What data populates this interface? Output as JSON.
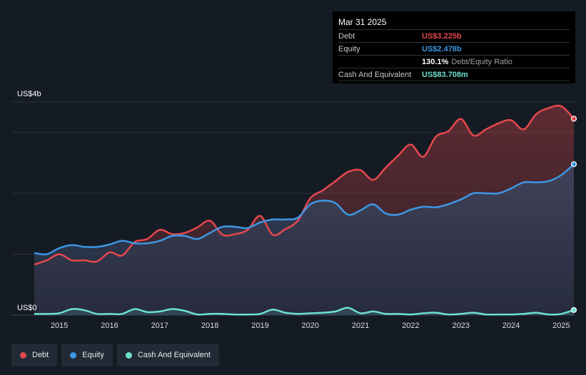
{
  "tooltip": {
    "date": "Mar 31 2025",
    "rows": [
      {
        "label": "Debt",
        "value": "US$3.225b",
        "color": "#e5484d"
      },
      {
        "label": "Equity",
        "value": "US$2.478b",
        "color": "#3d97e4"
      },
      {
        "label": "",
        "value": "130.1%",
        "suffix": "Debt/Equity Ratio",
        "color": "#ffffff"
      },
      {
        "label": "Cash And Equivalent",
        "value": "US$83.708m",
        "color": "#6ce0cf"
      }
    ]
  },
  "legend": [
    {
      "label": "Debt",
      "color": "#e5484d"
    },
    {
      "label": "Equity",
      "color": "#3d97e4"
    },
    {
      "label": "Cash And Equivalent",
      "color": "#6ce0cf"
    }
  ],
  "chart_data": {
    "type": "area",
    "ylabel_top": "US$4b",
    "ylabel_bottom": "US$0",
    "ylim": [
      0,
      3.5
    ],
    "xlim": [
      2014.5,
      2025.25
    ],
    "x_ticks": [
      "2015",
      "2016",
      "2017",
      "2018",
      "2019",
      "2020",
      "2021",
      "2022",
      "2023",
      "2024",
      "2025"
    ],
    "x_tick_values": [
      2015,
      2016,
      2017,
      2018,
      2019,
      2020,
      2021,
      2022,
      2023,
      2024,
      2025
    ],
    "grid": true,
    "series": [
      {
        "name": "Debt",
        "color": "#e5484d",
        "points": [
          [
            2014.5,
            0.83
          ],
          [
            2014.75,
            0.9
          ],
          [
            2015,
            1.0
          ],
          [
            2015.25,
            0.9
          ],
          [
            2015.5,
            0.9
          ],
          [
            2015.75,
            0.88
          ],
          [
            2016,
            1.03
          ],
          [
            2016.25,
            0.98
          ],
          [
            2016.5,
            1.2
          ],
          [
            2016.75,
            1.25
          ],
          [
            2017,
            1.4
          ],
          [
            2017.25,
            1.33
          ],
          [
            2017.5,
            1.35
          ],
          [
            2017.75,
            1.44
          ],
          [
            2018,
            1.55
          ],
          [
            2018.25,
            1.32
          ],
          [
            2018.5,
            1.33
          ],
          [
            2018.75,
            1.4
          ],
          [
            2019,
            1.63
          ],
          [
            2019.25,
            1.32
          ],
          [
            2019.5,
            1.41
          ],
          [
            2019.75,
            1.55
          ],
          [
            2020,
            1.92
          ],
          [
            2020.25,
            2.05
          ],
          [
            2020.5,
            2.2
          ],
          [
            2020.75,
            2.35
          ],
          [
            2021,
            2.38
          ],
          [
            2021.25,
            2.22
          ],
          [
            2021.5,
            2.42
          ],
          [
            2021.75,
            2.62
          ],
          [
            2022,
            2.8
          ],
          [
            2022.25,
            2.6
          ],
          [
            2022.5,
            2.93
          ],
          [
            2022.75,
            3.02
          ],
          [
            2023,
            3.22
          ],
          [
            2023.25,
            2.95
          ],
          [
            2023.5,
            3.05
          ],
          [
            2023.75,
            3.15
          ],
          [
            2024,
            3.2
          ],
          [
            2024.25,
            3.05
          ],
          [
            2024.5,
            3.3
          ],
          [
            2024.75,
            3.4
          ],
          [
            2025,
            3.43
          ],
          [
            2025.25,
            3.225
          ]
        ]
      },
      {
        "name": "Equity",
        "color": "#3d97e4",
        "points": [
          [
            2014.5,
            1.02
          ],
          [
            2014.75,
            1.0
          ],
          [
            2015,
            1.1
          ],
          [
            2015.25,
            1.15
          ],
          [
            2015.5,
            1.12
          ],
          [
            2015.75,
            1.12
          ],
          [
            2016,
            1.16
          ],
          [
            2016.25,
            1.22
          ],
          [
            2016.5,
            1.18
          ],
          [
            2016.75,
            1.18
          ],
          [
            2017,
            1.22
          ],
          [
            2017.25,
            1.3
          ],
          [
            2017.5,
            1.3
          ],
          [
            2017.75,
            1.25
          ],
          [
            2018,
            1.35
          ],
          [
            2018.25,
            1.45
          ],
          [
            2018.5,
            1.45
          ],
          [
            2018.75,
            1.43
          ],
          [
            2019,
            1.52
          ],
          [
            2019.25,
            1.57
          ],
          [
            2019.5,
            1.57
          ],
          [
            2019.75,
            1.6
          ],
          [
            2020,
            1.82
          ],
          [
            2020.25,
            1.88
          ],
          [
            2020.5,
            1.84
          ],
          [
            2020.75,
            1.65
          ],
          [
            2021,
            1.72
          ],
          [
            2021.25,
            1.82
          ],
          [
            2021.5,
            1.67
          ],
          [
            2021.75,
            1.65
          ],
          [
            2022,
            1.73
          ],
          [
            2022.25,
            1.78
          ],
          [
            2022.5,
            1.77
          ],
          [
            2022.75,
            1.82
          ],
          [
            2023,
            1.9
          ],
          [
            2023.25,
            2.0
          ],
          [
            2023.5,
            2.0
          ],
          [
            2023.75,
            2.0
          ],
          [
            2024,
            2.08
          ],
          [
            2024.25,
            2.18
          ],
          [
            2024.5,
            2.18
          ],
          [
            2024.75,
            2.2
          ],
          [
            2025,
            2.3
          ],
          [
            2025.25,
            2.478
          ]
        ]
      },
      {
        "name": "Cash And Equivalent",
        "color": "#6ce0cf",
        "points": [
          [
            2014.5,
            0.02
          ],
          [
            2014.75,
            0.02
          ],
          [
            2015,
            0.03
          ],
          [
            2015.25,
            0.1
          ],
          [
            2015.5,
            0.08
          ],
          [
            2015.75,
            0.02
          ],
          [
            2016,
            0.02
          ],
          [
            2016.25,
            0.02
          ],
          [
            2016.5,
            0.1
          ],
          [
            2016.75,
            0.05
          ],
          [
            2017,
            0.06
          ],
          [
            2017.25,
            0.1
          ],
          [
            2017.5,
            0.07
          ],
          [
            2017.75,
            0.01
          ],
          [
            2018,
            0.02
          ],
          [
            2018.25,
            0.02
          ],
          [
            2018.5,
            0.01
          ],
          [
            2018.75,
            0.01
          ],
          [
            2019,
            0.02
          ],
          [
            2019.25,
            0.09
          ],
          [
            2019.5,
            0.04
          ],
          [
            2019.75,
            0.02
          ],
          [
            2020,
            0.03
          ],
          [
            2020.25,
            0.04
          ],
          [
            2020.5,
            0.06
          ],
          [
            2020.75,
            0.12
          ],
          [
            2021,
            0.03
          ],
          [
            2021.25,
            0.06
          ],
          [
            2021.5,
            0.02
          ],
          [
            2021.75,
            0.02
          ],
          [
            2022,
            0.01
          ],
          [
            2022.25,
            0.03
          ],
          [
            2022.5,
            0.04
          ],
          [
            2022.75,
            0.01
          ],
          [
            2023,
            0.02
          ],
          [
            2023.25,
            0.04
          ],
          [
            2023.5,
            0.01
          ],
          [
            2023.75,
            0.01
          ],
          [
            2024,
            0.01
          ],
          [
            2024.25,
            0.02
          ],
          [
            2024.5,
            0.04
          ],
          [
            2024.75,
            0.01
          ],
          [
            2025,
            0.02
          ],
          [
            2025.25,
            0.084
          ]
        ]
      }
    ]
  }
}
